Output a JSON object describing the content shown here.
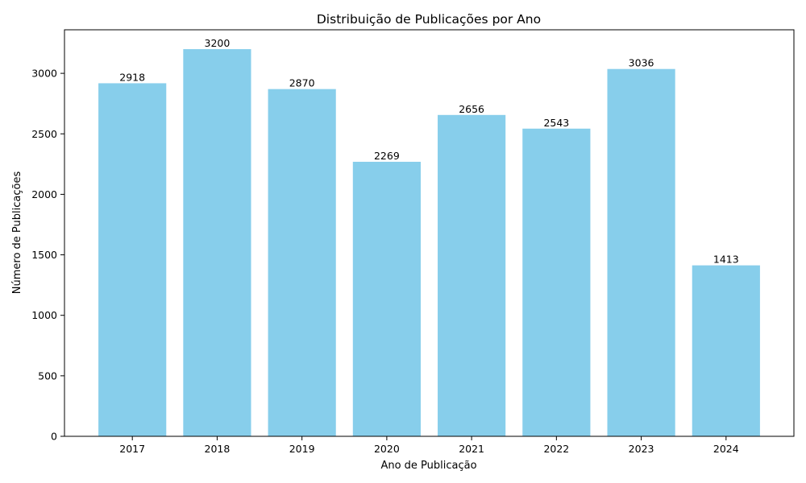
{
  "chart_data": {
    "type": "bar",
    "title": "Distribuição de Publicações por Ano",
    "xlabel": "Ano de Publicação",
    "ylabel": "Número de Publicações",
    "categories": [
      "2017",
      "2018",
      "2019",
      "2020",
      "2021",
      "2022",
      "2023",
      "2024"
    ],
    "values": [
      2918,
      3200,
      2870,
      2269,
      2656,
      2543,
      3036,
      1413
    ],
    "ylim": [
      0,
      3360
    ],
    "yticks": [
      0,
      500,
      1000,
      1500,
      2000,
      2500,
      3000
    ],
    "bar_color": "#87CEEB",
    "grid": false,
    "data_labels": true
  }
}
